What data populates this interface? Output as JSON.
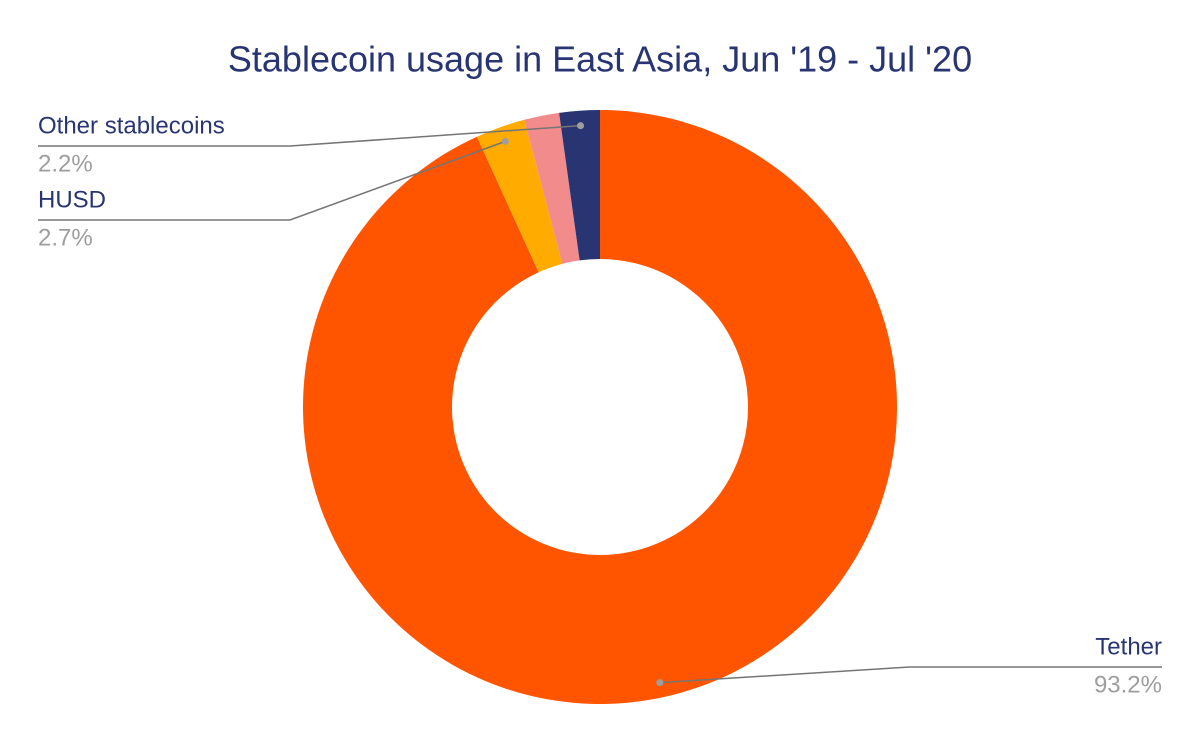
{
  "chart_data": {
    "type": "donut",
    "title": "Stablecoin usage in East Asia, Jun '19 - Jul '20",
    "categories": [
      "Tether",
      "HUSD",
      null,
      "Other stablecoins"
    ],
    "values": [
      93.2,
      2.7,
      1.9,
      2.2
    ],
    "value_labels": [
      "93.2%",
      "2.7%",
      null,
      "2.2%"
    ],
    "colors": [
      "#ff5500",
      "#ffab00",
      "#f28b8c",
      "#283572"
    ]
  }
}
